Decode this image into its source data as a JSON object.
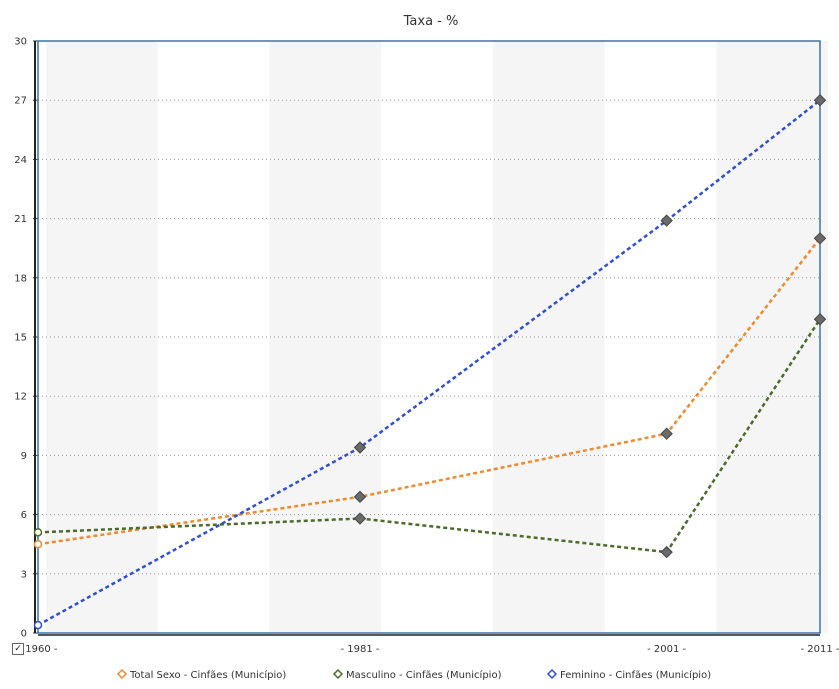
{
  "chart_data": {
    "type": "line",
    "title": "Taxa - %",
    "x": [
      "1960",
      "1981",
      "2001",
      "2011"
    ],
    "x_numeric": [
      1960,
      1981,
      2001,
      2011
    ],
    "ylim": [
      0,
      30
    ],
    "yticks": [
      0,
      3,
      6,
      9,
      12,
      15,
      18,
      21,
      24,
      27,
      30
    ],
    "grid": true,
    "legend_position": "bottom",
    "checkbox_label": "✓",
    "series": [
      {
        "name": "Total Sexo - Cinfães (Município)",
        "color": "#ef8a2f",
        "values": [
          4.5,
          6.9,
          10.1,
          20.0
        ]
      },
      {
        "name": "Masculino - Cinfães (Município)",
        "color": "#4a6b2a",
        "values": [
          5.1,
          5.8,
          4.1,
          15.9
        ]
      },
      {
        "name": "Feminino - Cinfães (Município)",
        "color": "#2f4fd0",
        "values": [
          0.4,
          9.4,
          20.9,
          27.0
        ]
      }
    ]
  }
}
